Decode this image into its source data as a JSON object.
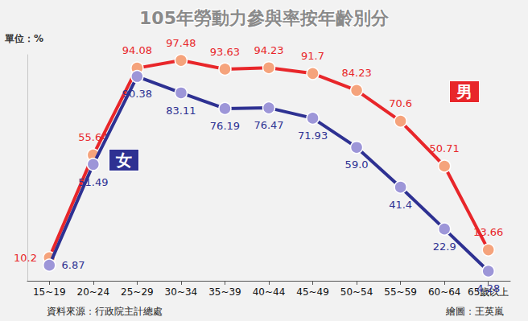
{
  "chart_data": {
    "type": "line",
    "title": "105年勞動力參與率按年齡別分",
    "y_label": "單位：%",
    "source": "資料來源：行政院主計總處",
    "credit": "繪圖：王英嵐",
    "categories": [
      "15~19",
      "20~24",
      "25~29",
      "30~34",
      "35~39",
      "40~44",
      "45~49",
      "50~54",
      "55~59",
      "60~64",
      "65歲以上"
    ],
    "series": [
      {
        "name": "男",
        "color": "#e8262a",
        "marker": "circle",
        "values": [
          10.2,
          55.64,
          94.08,
          97.48,
          93.63,
          94.23,
          91.7,
          84.23,
          70.6,
          50.71,
          13.66
        ]
      },
      {
        "name": "女",
        "color": "#2e3192",
        "marker": "circle",
        "values": [
          6.87,
          51.49,
          90.38,
          83.11,
          76.19,
          76.47,
          71.93,
          59.0,
          41.4,
          22.9,
          4.28
        ],
        "value_labels": [
          "6.87",
          "51.49",
          "90.38",
          "83.11",
          "76.19",
          "76.47",
          "71.93",
          "59.0",
          "41.4",
          "22.9",
          "4.28"
        ]
      }
    ],
    "ylim": [
      0,
      100
    ],
    "grid": false,
    "data_labels": true,
    "tick_labels": "x"
  }
}
